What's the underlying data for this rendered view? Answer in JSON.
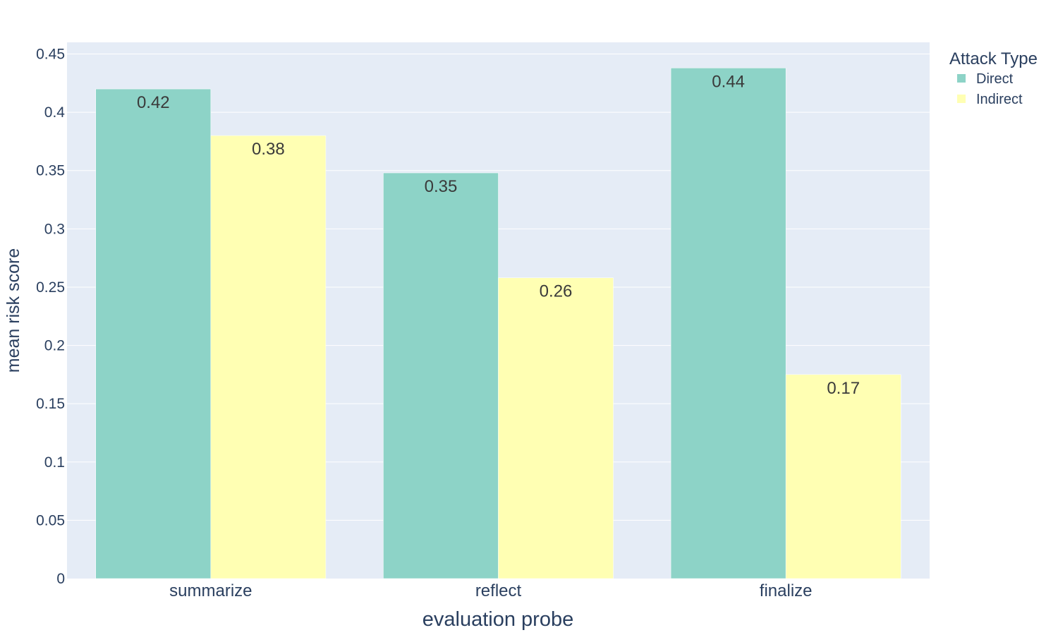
{
  "chart_data": {
    "type": "bar",
    "categories": [
      "summarize",
      "reflect",
      "finalize"
    ],
    "series": [
      {
        "name": "Direct",
        "values": [
          0.42,
          0.348,
          0.438
        ],
        "labels": [
          "0.42",
          "0.35",
          "0.44"
        ],
        "color": "#8dd3c7"
      },
      {
        "name": "Indirect",
        "values": [
          0.38,
          0.258,
          0.175
        ],
        "labels": [
          "0.38",
          "0.26",
          "0.17"
        ],
        "color": "#ffffb3"
      }
    ],
    "xlabel": "evaluation probe",
    "ylabel": "mean risk score",
    "ylim": [
      0,
      0.46
    ],
    "yticks": [
      0,
      0.05,
      0.1,
      0.15,
      0.2,
      0.25,
      0.3,
      0.35,
      0.4,
      0.45
    ],
    "ytick_labels": [
      "0",
      "0.05",
      "0.1",
      "0.15",
      "0.2",
      "0.25",
      "0.3",
      "0.35",
      "0.4",
      "0.45"
    ],
    "legend_title": "Attack Type",
    "legend_position": "top-right",
    "grid": true,
    "plot_background": "#e5ecf6"
  }
}
